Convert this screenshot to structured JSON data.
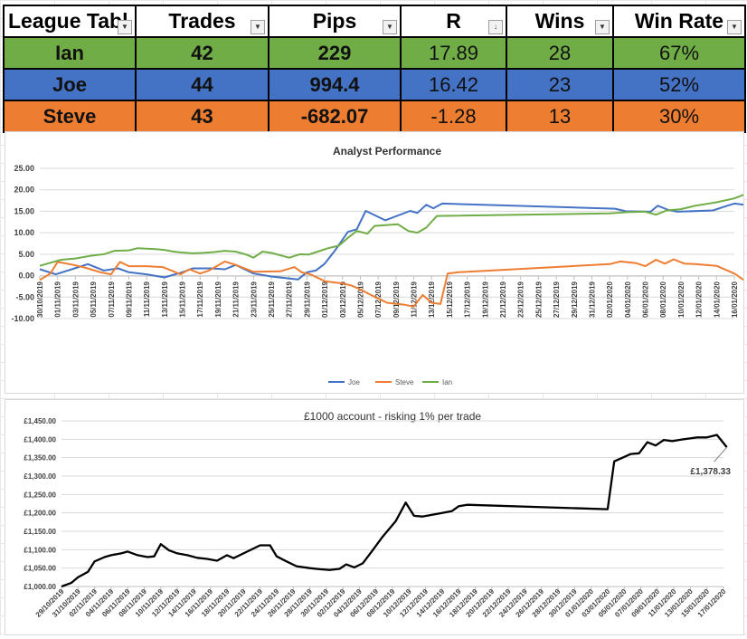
{
  "league": {
    "headers": [
      "League Tabl",
      "Trades",
      "Pips",
      "R",
      "Wins",
      "Win Rate"
    ],
    "rows": [
      {
        "name": "Ian",
        "trades": "42",
        "pips": "229",
        "r": "17.89",
        "wins": "28",
        "win_rate": "67%",
        "color": "#70ad47"
      },
      {
        "name": "Joe",
        "trades": "44",
        "pips": "994.4",
        "r": "16.42",
        "wins": "23",
        "win_rate": "52%",
        "color": "#4472c4"
      },
      {
        "name": "Steve",
        "trades": "43",
        "pips": "-682.07",
        "r": "-1.28",
        "wins": "13",
        "win_rate": "30%",
        "color": "#ed7d31"
      }
    ]
  },
  "chart_data": [
    {
      "type": "line",
      "title": "Analyst Performance",
      "ylim": [
        -10,
        25
      ],
      "yticks": [
        "25.00",
        "20.00",
        "15.00",
        "10.00",
        "5.00",
        "0.00",
        "-5.00",
        "-10.00"
      ],
      "xticks": [
        "30/10/2019",
        "01/11/2019",
        "03/11/2019",
        "05/11/2019",
        "07/11/2019",
        "09/11/2019",
        "11/11/2019",
        "13/11/2019",
        "15/11/2019",
        "17/11/2019",
        "19/11/2019",
        "21/11/2019",
        "23/11/2019",
        "25/11/2019",
        "27/11/2019",
        "29/11/2019",
        "01/12/2019",
        "03/12/2019",
        "05/12/2019",
        "07/12/2019",
        "09/12/2019",
        "11/12/2019",
        "13/12/2019",
        "15/12/2019",
        "17/12/2019",
        "19/12/2019",
        "21/12/2019",
        "23/12/2019",
        "25/12/2019",
        "27/12/2019",
        "29/12/2019",
        "31/12/2019",
        "02/01/2020",
        "04/01/2020",
        "06/01/2020",
        "08/01/2020",
        "10/01/2020",
        "12/01/2020",
        "14/01/2020",
        "16/01/2020"
      ],
      "grid": true,
      "legend": "bottom",
      "series": [
        {
          "name": "Joe",
          "color": "#4472c4",
          "points": [
            [
              0,
              1.5
            ],
            [
              0.9,
              0.3
            ],
            [
              1.8,
              1.5
            ],
            [
              2.7,
              2.7
            ],
            [
              3.6,
              1.2
            ],
            [
              4.4,
              1.7
            ],
            [
              5.0,
              0.8
            ],
            [
              6.0,
              0.3
            ],
            [
              7.0,
              -0.4
            ],
            [
              8.0,
              0.8
            ],
            [
              8.6,
              1.7
            ],
            [
              9.6,
              1.7
            ],
            [
              10.4,
              1.5
            ],
            [
              11.0,
              2.5
            ],
            [
              12.0,
              0.5
            ],
            [
              13.0,
              -0.2
            ],
            [
              14.5,
              -0.9
            ],
            [
              15.0,
              0.8
            ],
            [
              15.5,
              1.2
            ],
            [
              16.0,
              2.8
            ],
            [
              16.6,
              6.0
            ],
            [
              17.3,
              10.2
            ],
            [
              17.8,
              10.8
            ],
            [
              18.3,
              15.1
            ],
            [
              19.4,
              12.9
            ],
            [
              20.8,
              15.1
            ],
            [
              21.2,
              14.6
            ],
            [
              21.7,
              16.5
            ],
            [
              22.1,
              15.7
            ],
            [
              22.6,
              16.8
            ],
            [
              32.3,
              15.6
            ],
            [
              32.9,
              15.0
            ],
            [
              34.3,
              14.9
            ],
            [
              34.7,
              16.3
            ],
            [
              35.3,
              15.3
            ],
            [
              35.8,
              14.9
            ],
            [
              37.8,
              15.2
            ],
            [
              38.6,
              16.3
            ],
            [
              39.0,
              16.8
            ],
            [
              39.6,
              16.5
            ]
          ]
        },
        {
          "name": "Steve",
          "color": "#ed7d31",
          "points": [
            [
              0,
              -1.0
            ],
            [
              0.6,
              0.5
            ],
            [
              1.0,
              3.2
            ],
            [
              1.9,
              2.5
            ],
            [
              2.6,
              1.8
            ],
            [
              3.4,
              0.8
            ],
            [
              4.0,
              0.3
            ],
            [
              4.5,
              3.2
            ],
            [
              5.0,
              2.2
            ],
            [
              6.0,
              2.2
            ],
            [
              6.9,
              2.0
            ],
            [
              7.4,
              1.2
            ],
            [
              7.9,
              0.3
            ],
            [
              8.4,
              1.5
            ],
            [
              9.0,
              0.5
            ],
            [
              9.5,
              1.2
            ],
            [
              10.4,
              3.3
            ],
            [
              11.0,
              2.5
            ],
            [
              12.0,
              0.9
            ],
            [
              13.5,
              1.0
            ],
            [
              14.3,
              2.0
            ],
            [
              14.7,
              0.8
            ],
            [
              15.2,
              0.3
            ],
            [
              16.0,
              -1.3
            ],
            [
              17.0,
              -1.8
            ],
            [
              17.5,
              -2.3
            ],
            [
              18.0,
              -3.2
            ],
            [
              18.5,
              -4.3
            ],
            [
              19.0,
              -5.3
            ],
            [
              19.5,
              -6.3
            ],
            [
              20.5,
              -6.8
            ],
            [
              21.0,
              -7.2
            ],
            [
              21.5,
              -4.5
            ],
            [
              22.0,
              -6.3
            ],
            [
              22.5,
              -6.6
            ],
            [
              22.9,
              0.5
            ],
            [
              23.5,
              0.8
            ],
            [
              32.0,
              2.7
            ],
            [
              32.6,
              3.3
            ],
            [
              33.5,
              2.9
            ],
            [
              34.0,
              2.2
            ],
            [
              34.6,
              3.7
            ],
            [
              35.1,
              2.8
            ],
            [
              35.6,
              3.8
            ],
            [
              36.2,
              2.8
            ],
            [
              36.8,
              2.7
            ],
            [
              38.0,
              2.3
            ],
            [
              39.0,
              0.5
            ],
            [
              39.6,
              -1.2
            ]
          ]
        },
        {
          "name": "Ian",
          "color": "#70ad47",
          "points": [
            [
              0,
              2.3
            ],
            [
              0.6,
              3.0
            ],
            [
              1.2,
              3.7
            ],
            [
              2.0,
              4.0
            ],
            [
              2.8,
              4.6
            ],
            [
              3.6,
              5.0
            ],
            [
              4.2,
              5.8
            ],
            [
              5.0,
              5.9
            ],
            [
              5.5,
              6.4
            ],
            [
              6.5,
              6.2
            ],
            [
              7.0,
              6.0
            ],
            [
              7.5,
              5.6
            ],
            [
              8.0,
              5.4
            ],
            [
              8.6,
              5.2
            ],
            [
              9.2,
              5.3
            ],
            [
              9.8,
              5.5
            ],
            [
              10.4,
              5.8
            ],
            [
              11.0,
              5.6
            ],
            [
              11.6,
              4.9
            ],
            [
              12.0,
              4.2
            ],
            [
              12.5,
              5.6
            ],
            [
              13.0,
              5.3
            ],
            [
              14.0,
              4.2
            ],
            [
              14.6,
              5.0
            ],
            [
              15.1,
              4.9
            ],
            [
              15.6,
              5.6
            ],
            [
              16.2,
              6.4
            ],
            [
              16.8,
              7.0
            ],
            [
              17.3,
              8.8
            ],
            [
              17.8,
              10.4
            ],
            [
              18.4,
              9.8
            ],
            [
              18.8,
              11.6
            ],
            [
              20.1,
              12.0
            ],
            [
              20.7,
              10.4
            ],
            [
              21.2,
              10.0
            ],
            [
              21.7,
              11.2
            ],
            [
              22.3,
              13.9
            ],
            [
              32.0,
              14.5
            ],
            [
              33.0,
              14.8
            ],
            [
              34.0,
              14.9
            ],
            [
              34.6,
              14.2
            ],
            [
              35.2,
              15.2
            ],
            [
              36.0,
              15.5
            ],
            [
              36.8,
              16.3
            ],
            [
              38.0,
              17.1
            ],
            [
              39.0,
              18.0
            ],
            [
              39.5,
              18.8
            ],
            [
              40.0,
              17.9
            ]
          ]
        }
      ]
    },
    {
      "type": "line",
      "title": "£1000 account - risking 1% per trade",
      "ylim": [
        1000,
        1450
      ],
      "yticks": [
        "£1,450.00",
        "£1,400.00",
        "£1,350.00",
        "£1,300.00",
        "£1,250.00",
        "£1,200.00",
        "£1,150.00",
        "£1,100.00",
        "£1,050.00",
        "£1,000.00"
      ],
      "xticks": [
        "29/10/2019",
        "31/10/2019",
        "02/11/2019",
        "04/11/2019",
        "06/11/2019",
        "08/11/2019",
        "10/11/2019",
        "12/11/2019",
        "14/11/2019",
        "16/11/2019",
        "18/11/2019",
        "20/11/2019",
        "22/11/2019",
        "24/11/2019",
        "26/11/2019",
        "28/11/2019",
        "30/11/2019",
        "02/12/2019",
        "04/12/2019",
        "06/12/2019",
        "08/12/2019",
        "10/12/2019",
        "12/12/2019",
        "14/12/2019",
        "16/12/2019",
        "18/12/2019",
        "20/12/2019",
        "22/12/2019",
        "24/12/2019",
        "26/12/2019",
        "28/12/2019",
        "30/12/2019",
        "01/01/2020",
        "03/01/2020",
        "05/01/2020",
        "07/01/2020",
        "09/01/2020",
        "11/01/2020",
        "13/01/2020",
        "15/01/2020",
        "17/01/2020"
      ],
      "grid": true,
      "annotation": "£1,378.33",
      "series": [
        {
          "name": "",
          "color": "#000000",
          "points": [
            [
              0,
              1000
            ],
            [
              0.6,
              1010
            ],
            [
              1.0,
              1025
            ],
            [
              1.6,
              1040
            ],
            [
              2.0,
              1068
            ],
            [
              2.6,
              1080
            ],
            [
              3.0,
              1085
            ],
            [
              3.6,
              1090
            ],
            [
              4.0,
              1095
            ],
            [
              4.6,
              1085
            ],
            [
              5.2,
              1080
            ],
            [
              5.6,
              1082
            ],
            [
              6.0,
              1115
            ],
            [
              6.5,
              1098
            ],
            [
              7.0,
              1090
            ],
            [
              7.6,
              1085
            ],
            [
              8.2,
              1078
            ],
            [
              8.8,
              1075
            ],
            [
              9.4,
              1070
            ],
            [
              10.0,
              1085
            ],
            [
              10.4,
              1077
            ],
            [
              11.0,
              1090
            ],
            [
              12.0,
              1112
            ],
            [
              12.6,
              1112
            ],
            [
              13.0,
              1082
            ],
            [
              13.6,
              1068
            ],
            [
              14.2,
              1055
            ],
            [
              15.0,
              1050
            ],
            [
              15.6,
              1047
            ],
            [
              16.2,
              1045
            ],
            [
              16.8,
              1048
            ],
            [
              17.2,
              1060
            ],
            [
              17.7,
              1052
            ],
            [
              18.2,
              1063
            ],
            [
              18.8,
              1098
            ],
            [
              19.4,
              1135
            ],
            [
              20.2,
              1178
            ],
            [
              20.8,
              1228
            ],
            [
              21.3,
              1192
            ],
            [
              21.8,
              1190
            ],
            [
              23.0,
              1200
            ],
            [
              23.6,
              1205
            ],
            [
              24.0,
              1218
            ],
            [
              24.5,
              1222
            ],
            [
              33.0,
              1210
            ],
            [
              33.4,
              1340
            ],
            [
              33.9,
              1350
            ],
            [
              34.4,
              1360
            ],
            [
              34.9,
              1362
            ],
            [
              35.4,
              1392
            ],
            [
              35.9,
              1383
            ],
            [
              36.4,
              1398
            ],
            [
              36.9,
              1395
            ],
            [
              37.6,
              1400
            ],
            [
              38.4,
              1405
            ],
            [
              39.0,
              1405
            ],
            [
              39.6,
              1412
            ],
            [
              40.2,
              1378.33
            ]
          ]
        }
      ]
    }
  ]
}
